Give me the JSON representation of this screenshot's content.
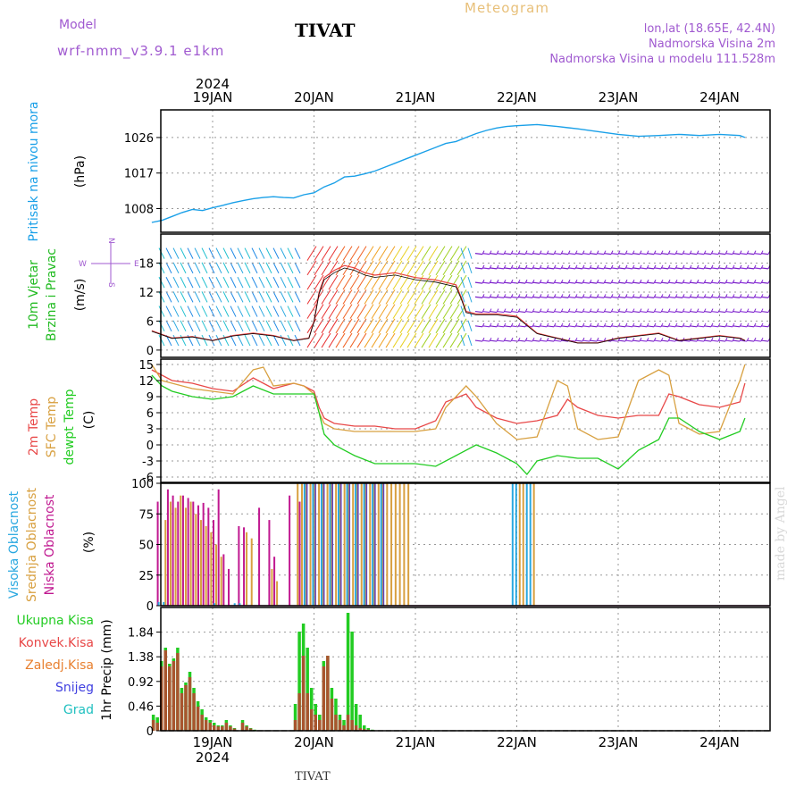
{
  "header": {
    "title": "TIVAT",
    "meteogram": "Meteogram",
    "model_label": "Model",
    "model_name": "wrf-nmm_v3.9.1 e1km",
    "loc_line1": "lon,lat (18.65E, 42.4N)",
    "loc_line2": "Nadmorska Visina 2m",
    "loc_line3": "Nadmorska Visina u modelu 111.528m",
    "footer": "TIVAT",
    "credit": "made by Angel"
  },
  "colors": {
    "pressure": "#1aa0e8",
    "wind_label": "#22bb22",
    "t2m": "#e84848",
    "sfc": "#d8a040",
    "dewpt": "#22cc22",
    "high_cloud": "#2aa8e0",
    "mid_cloud": "#d8a040",
    "low_cloud": "#c01890",
    "total_precip": "#22cc22",
    "conv_precip": "#e84848",
    "freezing_precip": "#e88030",
    "snow": "#4040e0",
    "hail": "#20c0c0",
    "compass": "#a05ad0"
  },
  "chart_data": [
    {
      "type": "line",
      "title": "",
      "ylabel": "Pritisak na nivou mora",
      "yunit": "(hPa)",
      "x_top_year": "2024",
      "x_ticks": [
        "19JAN",
        "20JAN",
        "21JAN",
        "22JAN",
        "23JAN",
        "24JAN"
      ],
      "x_range_days": [
        -0.6,
        5.25
      ],
      "yticks": [
        1008,
        1017,
        1026
      ],
      "ylim": [
        1002,
        1033
      ],
      "series": [
        {
          "x": [
            -0.6,
            -0.5,
            -0.4,
            -0.3,
            -0.2,
            -0.1,
            0,
            0.1,
            0.2,
            0.3,
            0.4,
            0.5,
            0.6,
            0.7,
            0.8,
            0.9,
            1.0,
            1.1,
            1.2,
            1.3,
            1.4,
            1.5,
            1.6,
            1.7,
            1.8,
            1.9,
            2.0,
            2.1,
            2.2,
            2.3,
            2.4,
            2.5,
            2.6,
            2.7,
            2.8,
            2.9,
            3.0,
            3.2,
            3.4,
            3.6,
            3.8,
            4.0,
            4.2,
            4.4,
            4.6,
            4.8,
            5.0,
            5.2,
            5.25
          ],
          "y": [
            1004.5,
            1005.0,
            1006.0,
            1007.0,
            1007.8,
            1007.5,
            1008.2,
            1008.8,
            1009.5,
            1010.0,
            1010.5,
            1010.8,
            1011.0,
            1010.8,
            1010.7,
            1011.5,
            1012.0,
            1013.5,
            1014.5,
            1016.0,
            1016.2,
            1016.8,
            1017.5,
            1018.5,
            1019.5,
            1020.5,
            1021.5,
            1022.5,
            1023.5,
            1024.5,
            1025.0,
            1026.0,
            1027.0,
            1027.8,
            1028.4,
            1028.8,
            1029.0,
            1029.3,
            1028.8,
            1028.2,
            1027.5,
            1026.8,
            1026.3,
            1026.5,
            1026.8,
            1026.5,
            1026.8,
            1026.5,
            1026.0
          ]
        }
      ]
    },
    {
      "type": "line",
      "title": "",
      "ylabel": "10m Vjetar Brzina i Pravac",
      "yunit": "(m/s)",
      "compass": "N E S W",
      "yticks": [
        0,
        6,
        12,
        18
      ],
      "ylim": [
        -1.5,
        24
      ],
      "series": [
        {
          "x": [
            -0.6,
            -0.4,
            -0.2,
            0,
            0.2,
            0.4,
            0.6,
            0.8,
            0.95,
            1.0,
            1.05,
            1.1,
            1.2,
            1.3,
            1.4,
            1.5,
            1.6,
            1.8,
            2.0,
            2.2,
            2.4,
            2.45,
            2.5,
            2.6,
            2.8,
            3.0,
            3.2,
            3.4,
            3.6,
            3.8,
            4.0,
            4.2,
            4.4,
            4.6,
            4.8,
            5.0,
            5.2,
            5.25
          ],
          "y": [
            4,
            2.5,
            2.8,
            2.0,
            3.0,
            3.5,
            3.0,
            2.0,
            2.5,
            6,
            12,
            15,
            16.5,
            17.5,
            17.0,
            16.0,
            15.5,
            16.0,
            15.0,
            14.5,
            13.5,
            11,
            8,
            7.5,
            7.5,
            7.0,
            3.5,
            2.5,
            1.5,
            1.5,
            2.5,
            3.0,
            3.5,
            2.0,
            2.5,
            3.0,
            2.5,
            2.0
          ]
        }
      ]
    },
    {
      "type": "line",
      "title": "",
      "ylabel": "2m Temp, SFC Temp, dewpt Temp",
      "yunit": "(C)",
      "legend": [
        "2m Temp",
        "SFC Temp",
        "dewpt Temp"
      ],
      "yticks": [
        -6,
        -3,
        0,
        3,
        6,
        9,
        12,
        15
      ],
      "ylim": [
        -7,
        16
      ],
      "series": [
        {
          "name": "2m Temp",
          "x": [
            -0.6,
            -0.5,
            -0.4,
            -0.2,
            0,
            0.2,
            0.4,
            0.6,
            0.8,
            0.9,
            1.0,
            1.05,
            1.1,
            1.2,
            1.4,
            1.6,
            1.8,
            2.0,
            2.2,
            2.3,
            2.5,
            2.6,
            2.8,
            3.0,
            3.2,
            3.4,
            3.5,
            3.6,
            3.8,
            4.0,
            4.2,
            4.4,
            4.5,
            4.6,
            4.8,
            5.0,
            5.2,
            5.25
          ],
          "y": [
            14,
            13,
            12,
            11.5,
            10.5,
            10,
            12.5,
            10.5,
            11.5,
            11,
            10,
            7,
            5,
            4,
            3.5,
            3.5,
            3,
            3,
            4.5,
            8,
            9.5,
            7,
            5,
            4,
            4.5,
            5.5,
            8.5,
            7,
            5.5,
            5,
            5.5,
            5.5,
            9.5,
            9,
            7.5,
            7,
            8,
            11.5
          ]
        },
        {
          "name": "SFC Temp",
          "x": [
            -0.6,
            -0.5,
            -0.4,
            -0.2,
            0,
            0.2,
            0.4,
            0.5,
            0.6,
            0.8,
            0.9,
            1.0,
            1.05,
            1.1,
            1.2,
            1.4,
            1.6,
            1.8,
            2.0,
            2.2,
            2.3,
            2.5,
            2.6,
            2.8,
            3.0,
            3.2,
            3.4,
            3.5,
            3.6,
            3.8,
            4.0,
            4.2,
            4.4,
            4.5,
            4.6,
            4.8,
            5.0,
            5.2,
            5.25
          ],
          "y": [
            15,
            12,
            11.5,
            10.5,
            10,
            9.5,
            14,
            14.5,
            11,
            11.5,
            11,
            9.5,
            6,
            4,
            3,
            2.5,
            2.5,
            2.5,
            2.5,
            3,
            7,
            11,
            9,
            4,
            1,
            1.5,
            12,
            11,
            3,
            1,
            1.5,
            12,
            14,
            13,
            4,
            2,
            2.5,
            12,
            15
          ]
        },
        {
          "name": "dewpt Temp",
          "x": [
            -0.6,
            -0.5,
            -0.4,
            -0.2,
            0,
            0.2,
            0.4,
            0.6,
            0.8,
            0.9,
            1.0,
            1.05,
            1.1,
            1.2,
            1.4,
            1.6,
            1.8,
            2.0,
            2.2,
            2.4,
            2.6,
            2.8,
            3.0,
            3.1,
            3.2,
            3.4,
            3.6,
            3.8,
            4.0,
            4.2,
            4.4,
            4.5,
            4.6,
            4.8,
            5.0,
            5.2,
            5.25
          ],
          "y": [
            13,
            11,
            10,
            9,
            8.5,
            9,
            11,
            9.5,
            9.5,
            9.5,
            9.5,
            6,
            2,
            0,
            -2,
            -3.5,
            -3.5,
            -3.5,
            -4,
            -2,
            0,
            -1.5,
            -3.5,
            -5.5,
            -3,
            -2,
            -2.5,
            -2.5,
            -4.5,
            -1,
            1,
            5,
            5,
            2.5,
            1,
            2.5,
            5
          ]
        }
      ]
    },
    {
      "type": "bar",
      "title": "",
      "ylabel": "Visoka Oblacnost, Srednja Oblacnost, Niska Oblacnost",
      "yunit": "(%)",
      "legend": [
        "Visoka Oblacnost",
        "Srednja Oblacnost",
        "Niska Oblacnost"
      ],
      "yticks": [
        0,
        25,
        50,
        75,
        100
      ],
      "ylim": [
        0,
        100
      ],
      "low_x": [
        -0.55,
        -0.45,
        -0.4,
        -0.35,
        -0.3,
        -0.25,
        -0.2,
        -0.15,
        -0.1,
        -0.05,
        0.0,
        0.05,
        0.1,
        0.15,
        0.25,
        0.3,
        0.45,
        0.55,
        0.6,
        0.75,
        0.85
      ],
      "low_y": [
        85,
        95,
        90,
        85,
        90,
        88,
        85,
        82,
        84,
        80,
        70,
        95,
        42,
        30,
        65,
        64,
        80,
        70,
        40,
        90,
        85
      ],
      "mid_x": [
        -0.5,
        -0.45,
        -0.4,
        -0.35,
        -0.3,
        -0.25,
        -0.2,
        -0.15,
        -0.1,
        -0.05,
        0.0,
        0.05,
        0.3,
        0.35,
        0.55,
        0.6
      ],
      "mid_y": [
        70,
        85,
        80,
        90,
        80,
        85,
        75,
        70,
        65,
        60,
        50,
        40,
        60,
        55,
        30,
        20
      ],
      "high_x": [
        -0.55,
        -0.5,
        0.0,
        0.2,
        0.25
      ],
      "high_y": [
        3,
        3,
        2,
        2,
        2
      ],
      "block_mid": [
        0.83,
        1.96
      ],
      "block_high": [
        0.88,
        1.72
      ],
      "block_high2": [
        2.95,
        3.18
      ],
      "block_mid_value": 100,
      "block_high_value": 100
    },
    {
      "type": "bar",
      "title": "",
      "ylabel": "1hr Precip",
      "yunit": "(mm)",
      "legend": [
        "Ukupna Kisa",
        "Konvek.Kisa",
        "Zaledj.Kisa",
        "Snijeg",
        "Grad"
      ],
      "x_bottom_year": "2024",
      "yticks": [
        0,
        0.46,
        0.92,
        1.38,
        1.84
      ],
      "ylim": [
        0,
        2.3
      ],
      "x": [
        -0.6,
        -0.56,
        -0.52,
        -0.48,
        -0.44,
        -0.4,
        -0.36,
        -0.32,
        -0.28,
        -0.24,
        -0.2,
        -0.16,
        -0.12,
        -0.08,
        -0.04,
        0.0,
        0.04,
        0.08,
        0.12,
        0.16,
        0.2,
        0.28,
        0.32,
        0.36,
        0.4,
        0.8,
        0.84,
        0.88,
        0.92,
        0.96,
        1.0,
        1.04,
        1.08,
        1.12,
        1.16,
        1.2,
        1.24,
        1.28,
        1.32,
        1.36,
        1.4,
        1.44,
        1.48,
        1.52,
        1.56
      ],
      "total": [
        0.3,
        0.25,
        1.3,
        1.55,
        1.25,
        1.35,
        1.55,
        0.8,
        0.9,
        1.1,
        0.8,
        0.55,
        0.4,
        0.25,
        0.2,
        0.15,
        0.1,
        0.1,
        0.2,
        0.1,
        0.05,
        0.2,
        0.1,
        0.05,
        0.02,
        0.5,
        1.85,
        2.0,
        1.55,
        0.8,
        0.5,
        0.3,
        1.3,
        1.4,
        0.8,
        0.6,
        0.3,
        0.2,
        2.2,
        1.85,
        0.5,
        0.3,
        0.1,
        0.05,
        0.02
      ],
      "conv": [
        0.2,
        0.15,
        1.2,
        1.5,
        1.2,
        1.3,
        1.45,
        0.7,
        0.85,
        1.0,
        0.7,
        0.45,
        0.3,
        0.2,
        0.15,
        0.1,
        0.08,
        0.08,
        0.15,
        0.08,
        0.04,
        0.15,
        0.08,
        0.04,
        0.01,
        0.2,
        0.7,
        1.4,
        0.7,
        0.4,
        0.3,
        0.2,
        1.2,
        1.4,
        0.6,
        0.3,
        0.2,
        0.1,
        0.3,
        0.2,
        0.1,
        0.05,
        0.03,
        0.02,
        0.01
      ]
    }
  ]
}
